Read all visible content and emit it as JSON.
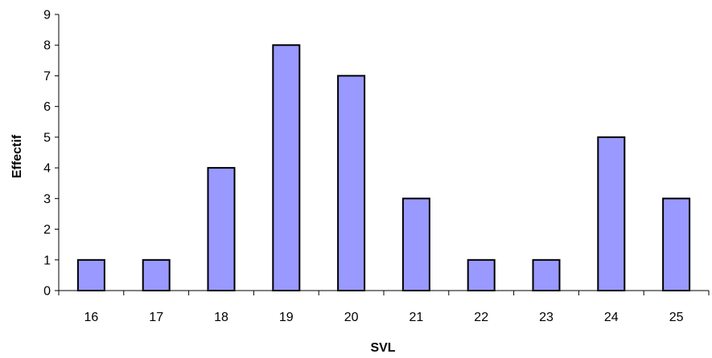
{
  "chart_data": {
    "type": "bar",
    "title": "",
    "xlabel": "SVL",
    "ylabel": "Effectif",
    "categories": [
      "16",
      "17",
      "18",
      "19",
      "20",
      "21",
      "22",
      "23",
      "24",
      "25"
    ],
    "values": [
      1,
      1,
      4,
      8,
      7,
      3,
      1,
      1,
      5,
      3
    ],
    "ylim": [
      0,
      9
    ],
    "yticks": [
      "0",
      "1",
      "2",
      "3",
      "4",
      "5",
      "6",
      "7",
      "8",
      "9"
    ],
    "grid": false,
    "legend": "none",
    "bar_color": "#9999ff",
    "bar_outline": "#000000"
  }
}
